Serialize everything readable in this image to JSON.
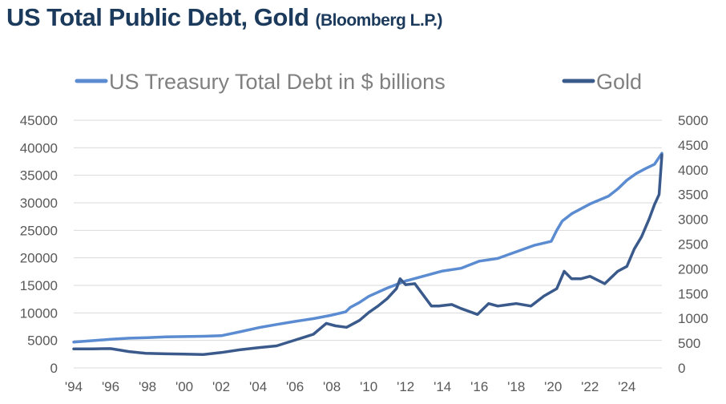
{
  "title": {
    "main": "US Total Public Debt, Gold",
    "source": "(Bloomberg L.P.)"
  },
  "colors": {
    "title": "#1b3a5c",
    "debt_line": "#5b8bd0",
    "gold_line": "#3b5a8c",
    "grid": "#d9d9d9",
    "tick": "#595959",
    "legend_text": "#808080"
  },
  "chart_data": {
    "type": "line",
    "title": "US Total Public Debt, Gold",
    "xlabel": "",
    "ylabel": "",
    "grid": true,
    "legend_position": "top",
    "x_range": [
      1994,
      2025.9
    ],
    "x_ticks": [
      "'94",
      "'96",
      "'98",
      "'00",
      "'02",
      "'04",
      "'06",
      "'08",
      "'10",
      "'12",
      "'14",
      "'16",
      "'18",
      "'20",
      "'22",
      "'24"
    ],
    "x_tick_years": [
      1994,
      1996,
      1998,
      2000,
      2002,
      2004,
      2006,
      2008,
      2010,
      2012,
      2014,
      2016,
      2018,
      2020,
      2022,
      2024
    ],
    "y_left": {
      "range": [
        0,
        45000
      ],
      "ticks": [
        "45000",
        "40000",
        "35000",
        "30000",
        "25000",
        "20000",
        "15000",
        "10000",
        "5000",
        "0"
      ],
      "tick_values": [
        45000,
        40000,
        35000,
        30000,
        25000,
        20000,
        15000,
        10000,
        5000,
        0
      ]
    },
    "y_right": {
      "range": [
        0,
        5000
      ],
      "ticks": [
        "5000",
        "4500",
        "4000",
        "3500",
        "3000",
        "2500",
        "2000",
        "1500",
        "1000",
        "500",
        "0"
      ],
      "tick_values": [
        5000,
        4500,
        4000,
        3500,
        3000,
        2500,
        2000,
        1500,
        1000,
        500,
        0
      ]
    },
    "series": [
      {
        "name": "US Treasury Total Debt in $ billions",
        "axis": "left",
        "x": [
          1994,
          1995,
          1996,
          1997,
          1998,
          1999,
          2000,
          2001,
          2002,
          2003,
          2004,
          2005,
          2006,
          2007,
          2008,
          2008.75,
          2009,
          2009.5,
          2010,
          2011,
          2012,
          2013,
          2014,
          2015,
          2016,
          2017,
          2018,
          2019,
          2019.9,
          2020.2,
          2020.5,
          2021,
          2022,
          2023,
          2023.5,
          2024,
          2024.5,
          2025,
          2025.5,
          2025.9
        ],
        "values": [
          4700,
          4950,
          5200,
          5400,
          5500,
          5650,
          5700,
          5750,
          5850,
          6550,
          7300,
          7900,
          8450,
          8950,
          9600,
          10200,
          11000,
          11900,
          13000,
          14500,
          15800,
          16700,
          17600,
          18100,
          19400,
          19900,
          21100,
          22300,
          23000,
          25000,
          26700,
          28000,
          29800,
          31200,
          32500,
          34100,
          35300,
          36200,
          37000,
          39000
        ]
      },
      {
        "name": "Gold",
        "axis": "right",
        "x": [
          1994,
          1995,
          1996,
          1997,
          1997.9,
          1999,
          2000,
          2001,
          2002,
          2003,
          2004,
          2005,
          2005.9,
          2006.5,
          2007,
          2007.7,
          2008.2,
          2008.8,
          2009.5,
          2010,
          2010.5,
          2011,
          2011.5,
          2011.7,
          2012,
          2012.5,
          2013,
          2013.4,
          2013.8,
          2014.5,
          2015,
          2015.9,
          2016.5,
          2017,
          2018,
          2018.8,
          2019.5,
          2020.2,
          2020.6,
          2021,
          2021.5,
          2022,
          2022.8,
          2023.5,
          2024,
          2024.4,
          2024.8,
          2025.2,
          2025.5,
          2025.75,
          2025.9
        ],
        "values": [
          385,
          385,
          390,
          330,
          295,
          285,
          280,
          270,
          310,
          365,
          410,
          445,
          550,
          620,
          680,
          900,
          850,
          820,
          960,
          1120,
          1250,
          1400,
          1600,
          1800,
          1680,
          1700,
          1450,
          1250,
          1250,
          1280,
          1200,
          1080,
          1300,
          1250,
          1300,
          1250,
          1450,
          1600,
          1950,
          1800,
          1800,
          1850,
          1700,
          1950,
          2050,
          2400,
          2650,
          3000,
          3300,
          3500,
          4300
        ]
      }
    ]
  }
}
